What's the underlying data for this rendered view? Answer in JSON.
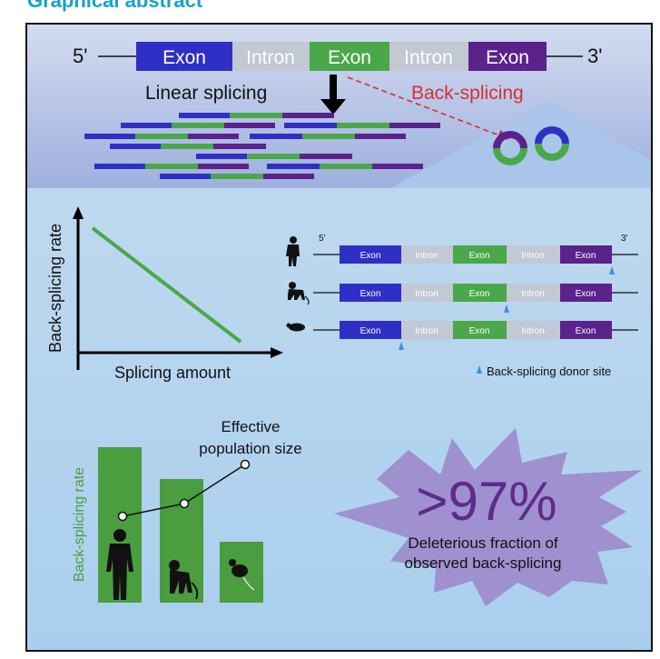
{
  "header": {
    "title": "Graphical abstract"
  },
  "colors": {
    "exon_blue": "#2f2fc6",
    "exon_green": "#4aa84a",
    "exon_purple": "#5a228a",
    "intron_grey": "#c2c8d4",
    "arrow_red": "#d63030",
    "bar_green": "#4a9e3f",
    "burst_purple": "#9f91cf",
    "percent_purple": "#5e2b8a"
  },
  "gene_model": {
    "five_prime": "5'",
    "three_prime": "3'",
    "segments": [
      "Exon",
      "Intron",
      "Exon",
      "Intron",
      "Exon"
    ]
  },
  "linear_splicing_label": "Linear splicing",
  "back_splicing_label": "Back-splicing",
  "panel_plot": {
    "y_label": "Back-splicing rate",
    "x_label": "Splicing amount"
  },
  "species_panel": {
    "five_prime": "5'",
    "three_prime": "3'",
    "rows": [
      {
        "species_icon": "human-icon",
        "segments": [
          "Exon",
          "Intron",
          "Exon",
          "Intron",
          "Exon"
        ]
      },
      {
        "species_icon": "monkey-icon",
        "segments": [
          "Exon",
          "Intron",
          "Exon",
          "Intron",
          "Exon"
        ]
      },
      {
        "species_icon": "mouse-icon",
        "segments": [
          "Exon",
          "Intron",
          "Exon",
          "Intron",
          "Exon"
        ]
      }
    ],
    "legend_label": "Back-splicing donor site"
  },
  "bottom": {
    "y_label": "Back-splicing rate",
    "effective_line1": "Effective",
    "effective_line2": "population size",
    "percent": ">97%",
    "caption_line1": "Deleterious fraction of",
    "caption_line2": "observed back-splicing"
  }
}
